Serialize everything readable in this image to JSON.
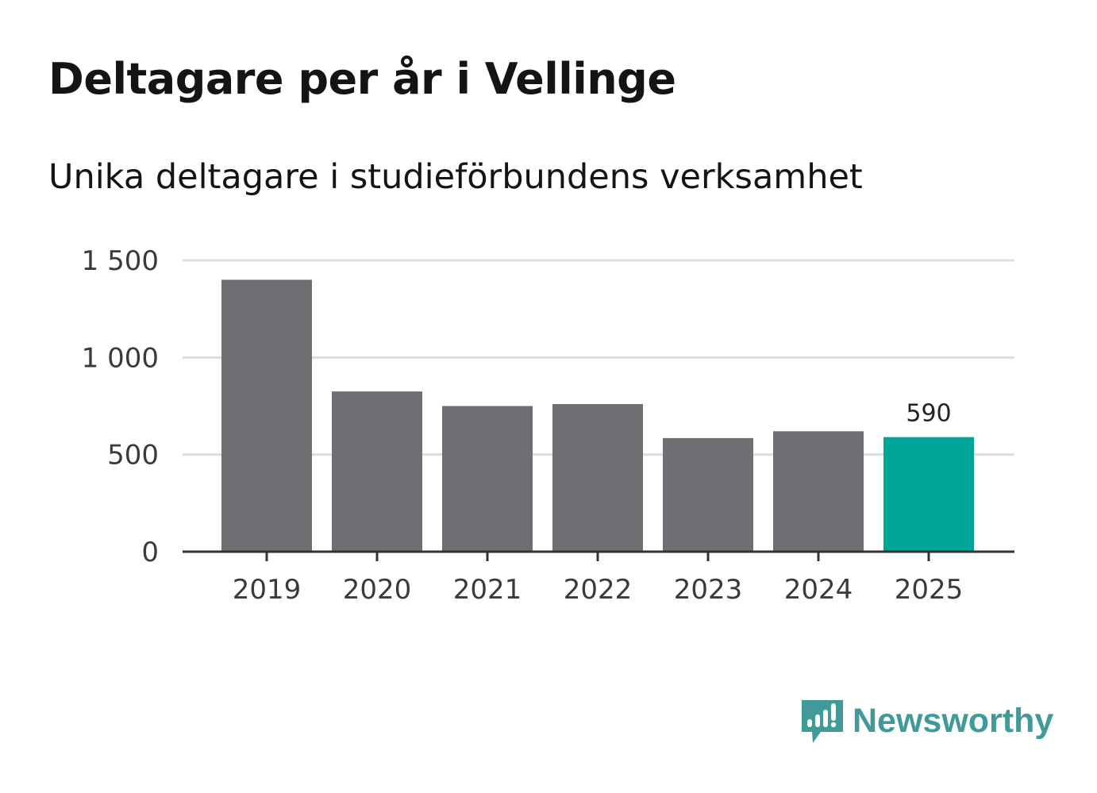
{
  "title": "Deltagare per år i Vellinge",
  "subtitle": "Unika deltagare i studieförbundens verksamhet",
  "brand": {
    "name": "Newsworthy",
    "color": "#3f9a98",
    "icon": "newsworthy-logo-icon"
  },
  "colors": {
    "bar": "#6f6e73",
    "highlight": "#00a59a",
    "grid": "#dddddd",
    "axis": "#333333"
  },
  "chart_data": {
    "type": "bar",
    "categories": [
      "2019",
      "2020",
      "2021",
      "2022",
      "2023",
      "2024",
      "2025"
    ],
    "values": [
      1400,
      825,
      750,
      760,
      585,
      620,
      590
    ],
    "highlight_index": 6,
    "data_labels": [
      {
        "index": 6,
        "text": "590"
      }
    ],
    "ylim": [
      0,
      1500
    ],
    "yticks": [
      {
        "value": 0,
        "label": "0"
      },
      {
        "value": 500,
        "label": "500"
      },
      {
        "value": 1000,
        "label": "1 000"
      },
      {
        "value": 1500,
        "label": "1 500"
      }
    ],
    "title": "Deltagare per år i Vellinge",
    "subtitle": "Unika deltagare i studieförbundens verksamhet",
    "xlabel": "",
    "ylabel": "",
    "grid": true,
    "legend": "none"
  }
}
